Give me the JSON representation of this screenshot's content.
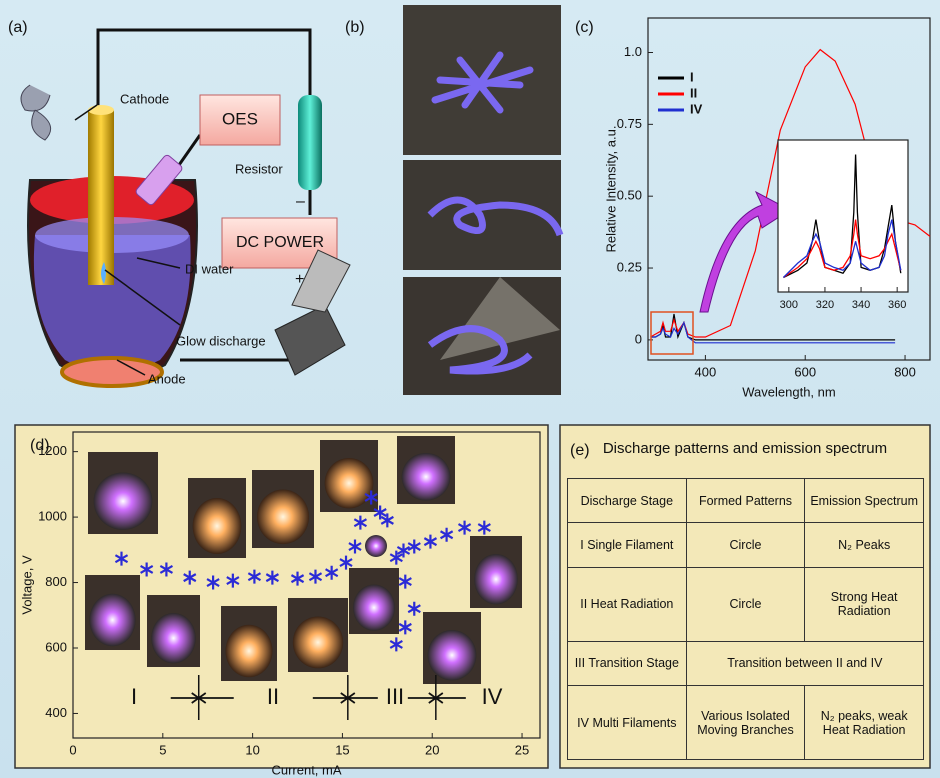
{
  "panel_labels": [
    "(a)",
    "(b)",
    "(c)",
    "(d)",
    "(e)"
  ],
  "diagram": {
    "labels": {
      "cathode": "Cathode",
      "oes": "OES",
      "resistor": "Resistor",
      "power": "DC POWER",
      "minus": "–",
      "plus": "+",
      "water": "DI water",
      "glow": "Glow discharge",
      "anode": "Anode"
    }
  },
  "chart_data": [
    {
      "type": "line",
      "xlabel": "Wavelength, nm",
      "ylabel": "Relative Intensity, a.u.",
      "x": [
        290,
        300,
        310,
        315,
        320,
        330,
        337,
        345,
        357,
        365,
        380,
        400,
        450,
        500,
        550,
        600,
        630,
        660,
        700,
        740,
        780,
        820,
        850
      ],
      "series": [
        {
          "name": "I",
          "color": "#000000",
          "values": [
            0.01,
            0.01,
            0.02,
            0.05,
            0.01,
            0.01,
            0.09,
            0.01,
            0.06,
            0.01,
            0,
            0,
            0,
            0,
            0,
            0,
            0,
            0,
            0,
            0,
            0,
            null,
            null
          ]
        },
        {
          "name": "II",
          "color": "#ff0000",
          "values": [
            0.01,
            0.02,
            0.03,
            0.06,
            0.03,
            0.03,
            0.07,
            0.03,
            0.06,
            0.02,
            0.01,
            0.01,
            0.05,
            0.31,
            0.73,
            0.95,
            1.01,
            0.97,
            0.82,
            0.55,
            0.42,
            0.4,
            0.36
          ]
        },
        {
          "name": "IV",
          "color": "#1f2fd0",
          "values": [
            0.01,
            0.01,
            0.02,
            0.04,
            0.02,
            0.01,
            0.04,
            0.02,
            0.06,
            0.01,
            -0.01,
            -0.01,
            -0.01,
            -0.01,
            -0.01,
            -0.01,
            -0.01,
            -0.01,
            -0.01,
            -0.01,
            -0.01,
            null,
            null
          ]
        }
      ],
      "xlim": [
        285,
        850
      ],
      "ylim": [
        -0.07,
        1.12
      ],
      "xticks": [
        400,
        600,
        800
      ],
      "yticks": [
        0,
        0.25,
        {
          "value": 0.5,
          "label": "0.50"
        },
        0.75,
        {
          "value": 1,
          "label": "1.0"
        }
      ],
      "legend": "upper left"
    },
    {
      "type": "line",
      "x": [
        297,
        305,
        310,
        313,
        315,
        317,
        320,
        325,
        330,
        334,
        336,
        337,
        338,
        340,
        345,
        350,
        353,
        355,
        357,
        359,
        362
      ],
      "series": [
        {
          "color": "#000000",
          "values": [
            0.05,
            0.1,
            0.15,
            0.3,
            0.45,
            0.3,
            0.12,
            0.1,
            0.08,
            0.15,
            0.5,
            0.9,
            0.5,
            0.12,
            0.1,
            0.12,
            0.25,
            0.4,
            0.55,
            0.3,
            0.08
          ]
        },
        {
          "color": "#ff0000",
          "values": [
            0.05,
            0.12,
            0.18,
            0.25,
            0.3,
            0.25,
            0.12,
            0.1,
            0.12,
            0.2,
            0.35,
            0.45,
            0.35,
            0.2,
            0.18,
            0.2,
            0.25,
            0.3,
            0.35,
            0.25,
            0.1
          ]
        },
        {
          "color": "#1f2fd0",
          "values": [
            0.05,
            0.15,
            0.2,
            0.3,
            0.35,
            0.3,
            0.15,
            0.12,
            0.1,
            0.15,
            0.25,
            0.3,
            0.25,
            0.15,
            0.1,
            0.12,
            0.2,
            0.35,
            0.45,
            0.3,
            0.1
          ]
        }
      ],
      "xlim": [
        294,
        366
      ],
      "ylim": [
        -0.05,
        1.0
      ],
      "xticks": [
        300,
        320,
        340,
        360
      ]
    },
    {
      "type": "scatter",
      "xlabel": "Current, mA",
      "ylabel": "Voltage, V",
      "color": "#2b2bd6",
      "x": [
        2.7,
        4.1,
        5.2,
        6.5,
        7.8,
        8.9,
        10.1,
        11.1,
        12.5,
        13.5,
        14.4,
        15.2,
        15.7,
        16.0,
        16.6,
        17.1,
        17.5,
        18.0,
        18.4,
        18.5,
        19.0,
        18.5,
        18.0,
        19.0,
        19.9,
        20.8,
        21.8,
        22.9
      ],
      "values": [
        873,
        840,
        840,
        815,
        800,
        806,
        818,
        815,
        812,
        818,
        830,
        861,
        910,
        983,
        1060,
        1014,
        990,
        876,
        898,
        803,
        720,
        663,
        611,
        910,
        925,
        946,
        968,
        968
      ],
      "xlim": [
        0,
        26
      ],
      "ylim": [
        325,
        1260
      ],
      "xticks": [
        0,
        5,
        10,
        15,
        20,
        25
      ],
      "yticks": [
        400,
        600,
        800,
        1000,
        1200
      ],
      "stages": [
        "I",
        "II",
        "III",
        "IV"
      ]
    }
  ],
  "table": {
    "title": "Discharge patterns and emission spectrum",
    "rows": [
      [
        "Discharge Stage",
        "Formed Patterns",
        "Emission Spectrum"
      ],
      [
        "I Single Filament",
        "Circle",
        "N₂ Peaks"
      ],
      [
        "II Heat Radiation",
        "Circle",
        "Strong Heat Radiation"
      ],
      [
        "III Transition Stage",
        "Transition between II and IV"
      ],
      [
        "IV Multi Filaments",
        "Various Isolated Moving Branches",
        "N₂ peaks, weak Heat Radiation"
      ]
    ]
  }
}
